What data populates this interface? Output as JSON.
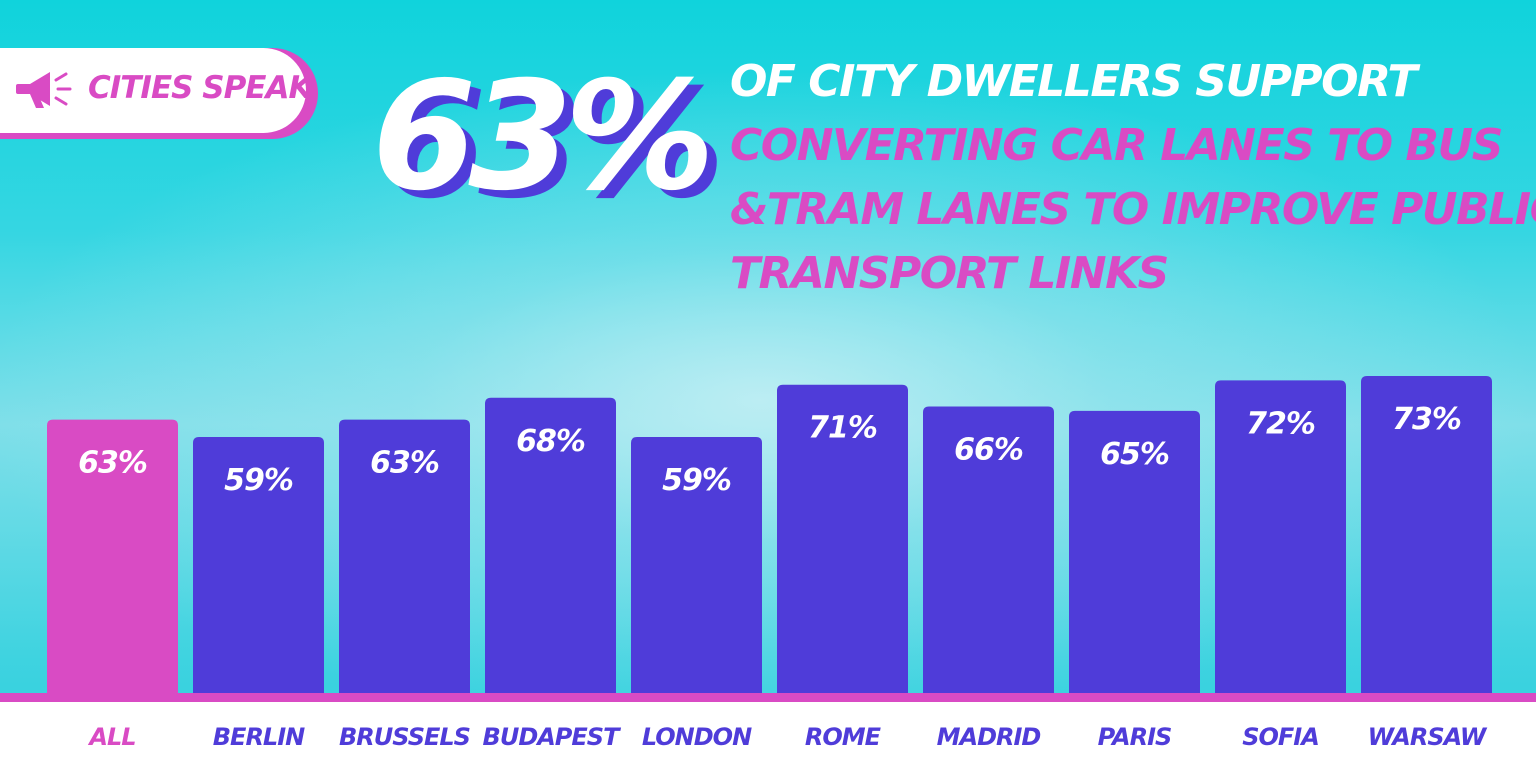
{
  "badge": {
    "label": "CITIES SPEAK",
    "icon": "megaphone-icon"
  },
  "headline": {
    "big_stat": "63%",
    "line1": "OF CITY DWELLERS SUPPORT",
    "line2": "CONVERTING CAR LANES TO BUS",
    "line3": "&TRAM LANES TO IMPROVE PUBLIC",
    "line4": "TRANSPORT LINKS"
  },
  "colors": {
    "pink": "#d94bc4",
    "purple": "#4f3cd9",
    "white": "#ffffff"
  },
  "chart_data": {
    "type": "bar",
    "categories": [
      "ALL",
      "BERLIN",
      "BRUSSELS",
      "BUDAPEST",
      "LONDON",
      "ROME",
      "MADRID",
      "PARIS",
      "SOFIA",
      "WARSAW"
    ],
    "values": [
      63,
      59,
      63,
      68,
      59,
      71,
      66,
      65,
      72,
      73
    ],
    "value_labels": [
      "63%",
      "59%",
      "63%",
      "68%",
      "59%",
      "71%",
      "66%",
      "65%",
      "72%",
      "73%"
    ],
    "highlight": [
      "ALL"
    ],
    "unit": "%",
    "title": "",
    "xlabel": "",
    "ylabel": "",
    "grid": false
  }
}
